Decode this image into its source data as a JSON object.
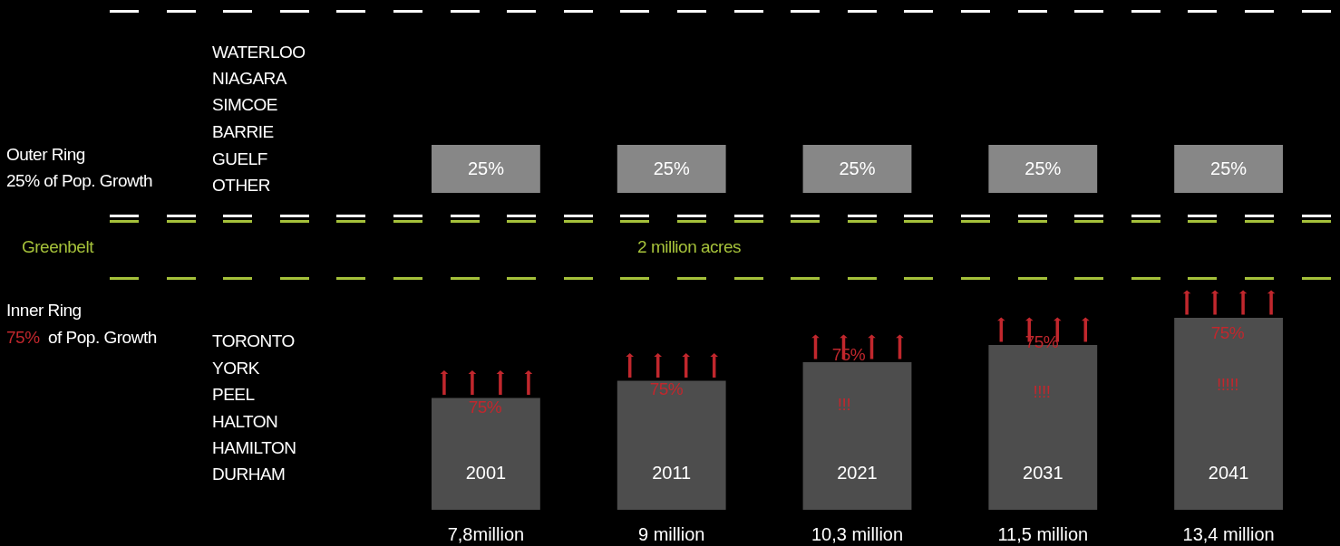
{
  "chart_data": [
    {
      "type": "bar",
      "categories": [
        null,
        null,
        null,
        null,
        null
      ],
      "values": [
        25,
        25,
        25,
        25,
        25
      ],
      "value_labels": [
        "25%",
        "25%",
        "25%",
        "25%",
        "25%"
      ],
      "color": "#878787",
      "tick_labels": false,
      "annotations": [
        "Outer Ring",
        "25% of Pop. Growth",
        "WATERLOO",
        "NIAGARA",
        "SIMCOE",
        "BARRIE",
        "GUELF",
        "OTHER"
      ]
    },
    {
      "type": "bar",
      "categories": [
        "2001",
        "2011",
        "2021",
        "2031",
        "2041"
      ],
      "values": [
        7.8,
        9,
        10.3,
        11.5,
        13.4
      ],
      "value_labels": [
        "7,8million",
        "9 million",
        "10,3 million",
        "11,5 million",
        "13,4 million"
      ],
      "color": "#4d4d4d",
      "tick_labels": "x",
      "annotations": [
        "Greenbelt",
        "2 million acres",
        "Inner Ring",
        "75%",
        "of Pop. Growth",
        "TORONTO",
        "YORK",
        "PEEL",
        "HALTON",
        "HAMILTON",
        "DURHAM",
        "75%",
        "75%",
        "75%",
        "!!!",
        "75%",
        "!!!!",
        "75%",
        "!!!!!"
      ]
    }
  ]
}
